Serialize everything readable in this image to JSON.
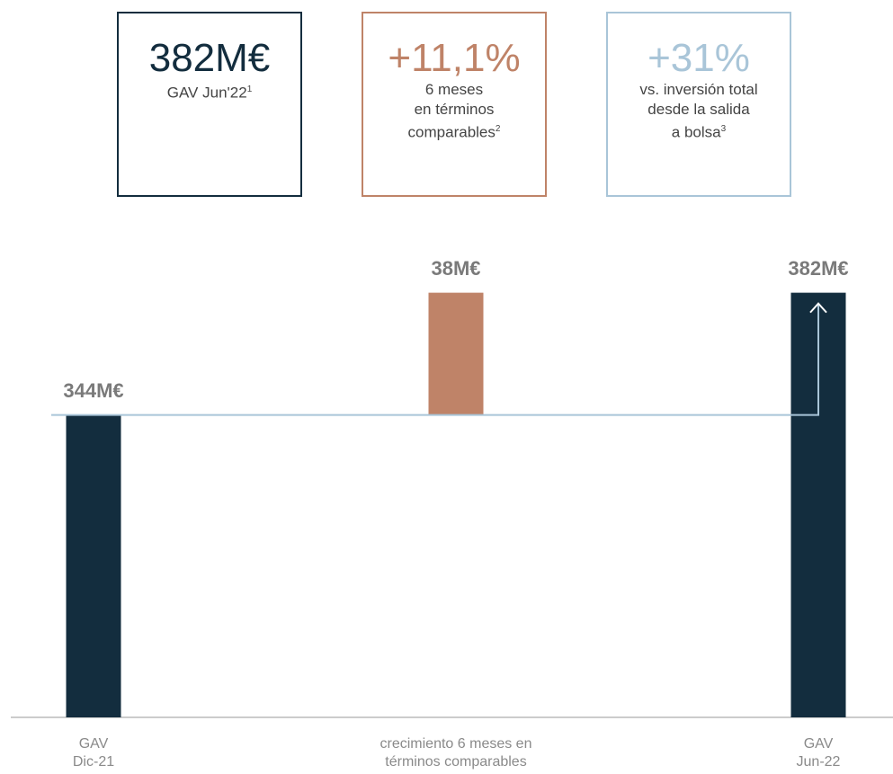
{
  "kpis": [
    {
      "value": "382M€",
      "caption": [
        "GAV Jun'22"
      ],
      "note": "1",
      "color": "#132d3e"
    },
    {
      "value": "+11,1%",
      "caption": [
        "6 meses",
        "en términos",
        "comparables"
      ],
      "note": "2",
      "color": "#bf8368"
    },
    {
      "value": "+31%",
      "caption": [
        "vs. inversión total",
        "desde la salida",
        "a bolsa"
      ],
      "note": "3",
      "color": "#a9c5d8"
    }
  ],
  "chart_data": {
    "type": "waterfall",
    "categories": [
      "GAV Dic-21",
      "crecimiento 6 meses en términos comparables",
      "GAV Jun-22"
    ],
    "values": [
      344,
      38,
      382
    ],
    "value_labels": [
      "344M€",
      "38M€",
      "382M€"
    ],
    "measure": [
      "absolute",
      "relative",
      "total"
    ],
    "colors": [
      "#132d3e",
      "#bf8368",
      "#132d3e"
    ],
    "connector_color": "#a9c5d8",
    "ylim": [
      250,
      390
    ]
  }
}
